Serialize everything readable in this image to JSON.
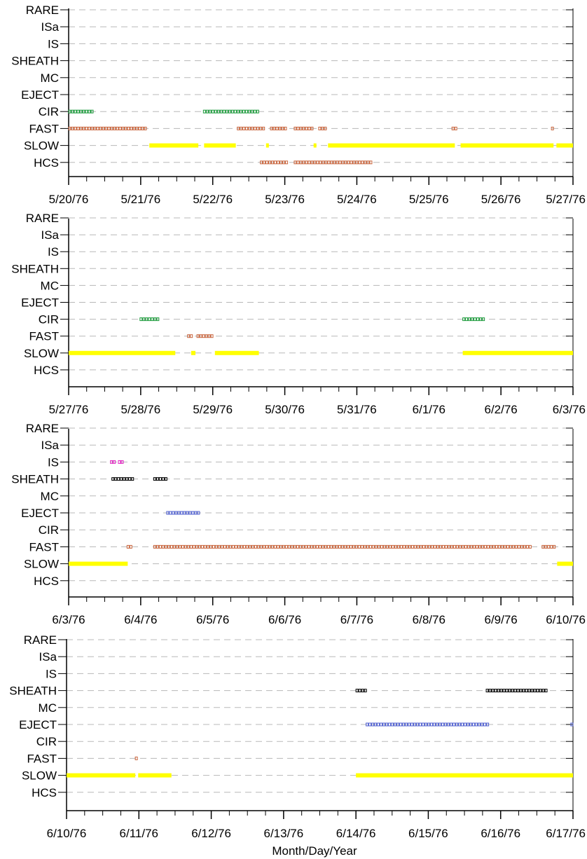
{
  "chart_data": {
    "type": "timeline",
    "xlabel": "Month/Day/Year",
    "categories": [
      "RARE",
      "ISa",
      "IS",
      "SHEATH",
      "MC",
      "EJECT",
      "CIR",
      "FAST",
      "SLOW",
      "HCS"
    ],
    "colors": {
      "CIR": "#1a9a3a",
      "FAST": "#c8643c",
      "HCS": "#c8643c",
      "SLOW": "#ffff00",
      "SHEATH": "#000000",
      "EJECT": "#5060d0",
      "IS": "#e020c0"
    },
    "panels": [
      {
        "ticks": [
          "5/20/76",
          "5/21/76",
          "5/22/76",
          "5/23/76",
          "5/24/76",
          "5/25/76",
          "5/26/76",
          "5/27/76"
        ],
        "intervals": [
          {
            "category": "CIR",
            "start": 0.0,
            "end": 0.36
          },
          {
            "category": "CIR",
            "start": 1.87,
            "end": 2.66
          },
          {
            "category": "FAST",
            "start": 0.0,
            "end": 1.1
          },
          {
            "category": "FAST",
            "start": 2.34,
            "end": 2.74
          },
          {
            "category": "FAST",
            "start": 2.8,
            "end": 3.04
          },
          {
            "category": "FAST",
            "start": 3.13,
            "end": 3.42
          },
          {
            "category": "FAST",
            "start": 3.47,
            "end": 3.57
          },
          {
            "category": "FAST",
            "start": 5.32,
            "end": 5.4
          },
          {
            "category": "FAST",
            "start": 6.7,
            "end": 6.74
          },
          {
            "category": "SLOW",
            "start": 1.12,
            "end": 1.8
          },
          {
            "category": "SLOW",
            "start": 1.88,
            "end": 2.32
          },
          {
            "category": "SLOW",
            "start": 2.74,
            "end": 2.77
          },
          {
            "category": "SLOW",
            "start": 3.4,
            "end": 3.43
          },
          {
            "category": "SLOW",
            "start": 3.6,
            "end": 5.36
          },
          {
            "category": "SLOW",
            "start": 5.44,
            "end": 6.73
          },
          {
            "category": "SLOW",
            "start": 6.77,
            "end": 7.17
          },
          {
            "category": "HCS",
            "start": 2.66,
            "end": 3.04
          },
          {
            "category": "HCS",
            "start": 3.13,
            "end": 4.2
          }
        ]
      },
      {
        "ticks": [
          "5/27/76",
          "5/28/76",
          "5/29/76",
          "5/30/76",
          "5/31/76",
          "6/1/76",
          "6/2/76",
          "6/3/76"
        ],
        "intervals": [
          {
            "category": "CIR",
            "start": 0.99,
            "end": 1.27
          },
          {
            "category": "CIR",
            "start": 5.47,
            "end": 5.77
          },
          {
            "category": "FAST",
            "start": 1.65,
            "end": 1.73
          },
          {
            "category": "FAST",
            "start": 1.78,
            "end": 2.03
          },
          {
            "category": "SLOW",
            "start": 0.0,
            "end": 1.48
          },
          {
            "category": "SLOW",
            "start": 1.7,
            "end": 1.76
          },
          {
            "category": "SLOW",
            "start": 2.03,
            "end": 2.64
          },
          {
            "category": "SLOW",
            "start": 5.47,
            "end": 7.17
          }
        ]
      },
      {
        "ticks": [
          "6/3/76",
          "6/4/76",
          "6/5/76",
          "6/6/76",
          "6/7/76",
          "6/8/76",
          "6/9/76",
          "6/10/76"
        ],
        "intervals": [
          {
            "category": "IS",
            "start": 0.58,
            "end": 0.66
          },
          {
            "category": "IS",
            "start": 0.69,
            "end": 0.78
          },
          {
            "category": "SHEATH",
            "start": 0.6,
            "end": 0.9
          },
          {
            "category": "SHEATH",
            "start": 1.18,
            "end": 1.36
          },
          {
            "category": "EJECT",
            "start": 1.36,
            "end": 1.82
          },
          {
            "category": "FAST",
            "start": 0.81,
            "end": 0.9
          },
          {
            "category": "FAST",
            "start": 1.18,
            "end": 6.43
          },
          {
            "category": "FAST",
            "start": 6.57,
            "end": 6.78
          },
          {
            "category": "SLOW",
            "start": 0.0,
            "end": 0.82
          },
          {
            "category": "SLOW",
            "start": 6.78,
            "end": 7.17
          }
        ]
      },
      {
        "ticks": [
          "6/10/76",
          "6/11/76",
          "6/12/76",
          "6/13/76",
          "6/14/76",
          "6/15/76",
          "6/16/76",
          "6/17/76"
        ],
        "intervals": [
          {
            "category": "SHEATH",
            "start": 4.0,
            "end": 4.14
          },
          {
            "category": "SHEATH",
            "start": 5.8,
            "end": 6.67
          },
          {
            "category": "EJECT",
            "start": 4.14,
            "end": 5.83
          },
          {
            "category": "EJECT",
            "start": 6.97,
            "end": 7.17
          },
          {
            "category": "FAST",
            "start": 0.95,
            "end": 1.0
          },
          {
            "category": "SLOW",
            "start": 0.0,
            "end": 0.95
          },
          {
            "category": "SLOW",
            "start": 0.99,
            "end": 1.45
          },
          {
            "category": "SLOW",
            "start": 4.0,
            "end": 7.2
          }
        ]
      }
    ]
  }
}
